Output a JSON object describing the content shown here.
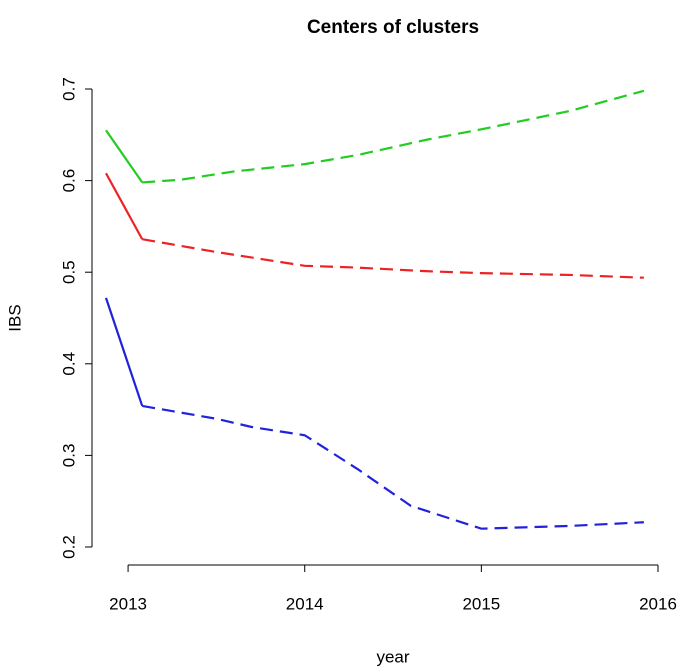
{
  "chart_data": {
    "type": "line",
    "title": "Centers of clusters",
    "x_label": "year",
    "y_label": "IBS",
    "xlim": [
      2012.875,
      2016
    ],
    "xticks": [
      2013,
      2014,
      2015,
      2016
    ],
    "ylim": [
      0.2,
      0.7
    ],
    "yticks": [
      0.2,
      0.3,
      0.4,
      0.5,
      0.6,
      0.7
    ],
    "series": [
      {
        "color": "#22cc22",
        "linestyle": "solid",
        "x": [
          2012.875,
          2013.08
        ],
        "values": [
          0.655,
          0.598
        ]
      },
      {
        "color": "#22cc22",
        "linestyle": "dashed",
        "x": [
          2013.08,
          2013.3,
          2013.6,
          2014.0,
          2014.3,
          2014.7,
          2015.0,
          2015.5,
          2015.92
        ],
        "values": [
          0.598,
          0.601,
          0.61,
          0.618,
          0.628,
          0.645,
          0.656,
          0.676,
          0.698
        ]
      },
      {
        "color": "#ee2222",
        "linestyle": "solid",
        "x": [
          2012.875,
          2013.08
        ],
        "values": [
          0.608,
          0.536
        ]
      },
      {
        "color": "#ee2222",
        "linestyle": "dashed",
        "x": [
          2013.08,
          2013.5,
          2014.0,
          2014.3,
          2014.7,
          2015.0,
          2015.5,
          2015.92
        ],
        "values": [
          0.536,
          0.522,
          0.507,
          0.505,
          0.501,
          0.499,
          0.497,
          0.494
        ]
      },
      {
        "color": "#2222dd",
        "linestyle": "solid",
        "x": [
          2012.875,
          2013.08
        ],
        "values": [
          0.472,
          0.354
        ]
      },
      {
        "color": "#2222dd",
        "linestyle": "dashed",
        "x": [
          2013.08,
          2013.5,
          2013.7,
          2014.0,
          2014.3,
          2014.6,
          2015.0,
          2015.5,
          2015.92
        ],
        "values": [
          0.354,
          0.34,
          0.331,
          0.322,
          0.285,
          0.245,
          0.22,
          0.223,
          0.227
        ]
      }
    ]
  }
}
